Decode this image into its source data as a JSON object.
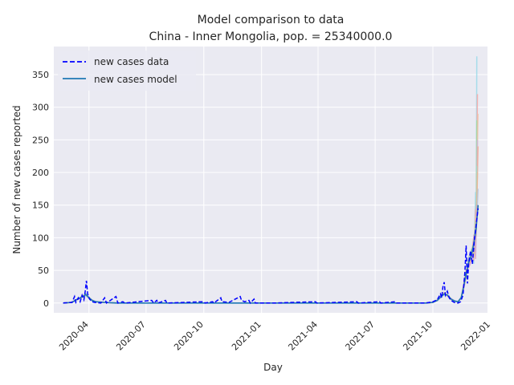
{
  "chart_data": {
    "type": "line",
    "title": "Model comparison to data",
    "subtitle": "China - Inner Mongolia, pop. = 25340000.0",
    "xlabel": "Day",
    "ylabel": "Number of new cases reported",
    "xlim": [
      "2020-02-05",
      "2021-12-27"
    ],
    "ylim": [
      -15,
      393
    ],
    "grid": true,
    "legend_position": "top-left",
    "x_ticks": [
      "2020-04",
      "2020-07",
      "2020-10",
      "2021-01",
      "2021-04",
      "2021-07",
      "2021-10",
      "2022-01"
    ],
    "y_ticks": [
      0,
      50,
      100,
      150,
      200,
      250,
      300,
      350
    ],
    "series": [
      {
        "name": "new cases data",
        "style": "dashed",
        "color": "#0000ff",
        "points": [
          [
            "2020-02-20",
            0
          ],
          [
            "2020-03-05",
            1
          ],
          [
            "2020-03-09",
            10
          ],
          [
            "2020-03-11",
            1
          ],
          [
            "2020-03-15",
            8
          ],
          [
            "2020-03-18",
            2
          ],
          [
            "2020-03-21",
            12
          ],
          [
            "2020-03-24",
            5
          ],
          [
            "2020-03-26",
            18
          ],
          [
            "2020-03-28",
            34
          ],
          [
            "2020-03-30",
            14
          ],
          [
            "2020-04-02",
            6
          ],
          [
            "2020-04-06",
            2
          ],
          [
            "2020-04-10",
            1
          ],
          [
            "2020-04-20",
            0
          ],
          [
            "2020-04-26",
            8
          ],
          [
            "2020-04-29",
            0
          ],
          [
            "2020-05-14",
            10
          ],
          [
            "2020-05-17",
            0
          ],
          [
            "2020-05-25",
            2
          ],
          [
            "2020-05-28",
            0
          ],
          [
            "2020-07-10",
            4
          ],
          [
            "2020-07-13",
            0
          ],
          [
            "2020-07-18",
            4
          ],
          [
            "2020-07-20",
            0
          ],
          [
            "2020-08-01",
            4
          ],
          [
            "2020-08-03",
            0
          ],
          [
            "2020-10-01",
            2
          ],
          [
            "2020-10-03",
            0
          ],
          [
            "2020-10-15",
            2
          ],
          [
            "2020-10-17",
            0
          ],
          [
            "2020-10-28",
            8
          ],
          [
            "2020-10-30",
            2
          ],
          [
            "2020-11-10",
            1
          ],
          [
            "2020-11-28",
            10
          ],
          [
            "2020-11-30",
            4
          ],
          [
            "2020-12-05",
            2
          ],
          [
            "2020-12-12",
            4
          ],
          [
            "2020-12-14",
            0
          ],
          [
            "2020-12-20",
            6
          ],
          [
            "2020-12-22",
            0
          ],
          [
            "2021-01-20",
            0
          ],
          [
            "2021-03-28",
            2
          ],
          [
            "2021-03-30",
            0
          ],
          [
            "2021-06-02",
            2
          ],
          [
            "2021-06-04",
            0
          ],
          [
            "2021-07-08",
            2
          ],
          [
            "2021-07-10",
            0
          ],
          [
            "2021-08-02",
            2
          ],
          [
            "2021-08-04",
            0
          ],
          [
            "2021-09-20",
            0
          ],
          [
            "2021-10-01",
            2
          ],
          [
            "2021-10-08",
            5
          ],
          [
            "2021-10-13",
            14
          ],
          [
            "2021-10-15",
            8
          ],
          [
            "2021-10-17",
            25
          ],
          [
            "2021-10-19",
            32
          ],
          [
            "2021-10-21",
            12
          ],
          [
            "2021-10-24",
            18
          ],
          [
            "2021-10-27",
            8
          ],
          [
            "2021-10-30",
            4
          ],
          [
            "2021-11-04",
            1
          ],
          [
            "2021-11-10",
            0
          ],
          [
            "2021-11-14",
            2
          ],
          [
            "2021-11-18",
            12
          ],
          [
            "2021-11-21",
            48
          ],
          [
            "2021-11-23",
            88
          ],
          [
            "2021-11-25",
            30
          ],
          [
            "2021-11-27",
            62
          ],
          [
            "2021-11-30",
            80
          ],
          [
            "2021-12-03",
            60
          ],
          [
            "2021-12-06",
            96
          ],
          [
            "2021-12-09",
            120
          ],
          [
            "2021-12-12",
            145
          ]
        ]
      },
      {
        "name": "new cases model",
        "style": "solid",
        "color": "#1f77b4",
        "points": [
          [
            "2020-02-20",
            0
          ],
          [
            "2020-03-05",
            1
          ],
          [
            "2020-03-10",
            4
          ],
          [
            "2020-03-16",
            7
          ],
          [
            "2020-03-22",
            10
          ],
          [
            "2020-03-27",
            13
          ],
          [
            "2020-04-01",
            8
          ],
          [
            "2020-04-06",
            4
          ],
          [
            "2020-04-12",
            2
          ],
          [
            "2020-04-25",
            1
          ],
          [
            "2020-05-15",
            0
          ],
          [
            "2021-09-20",
            0
          ],
          [
            "2021-10-01",
            1
          ],
          [
            "2021-10-08",
            4
          ],
          [
            "2021-10-14",
            10
          ],
          [
            "2021-10-19",
            14
          ],
          [
            "2021-10-24",
            12
          ],
          [
            "2021-10-30",
            6
          ],
          [
            "2021-11-05",
            3
          ],
          [
            "2021-11-10",
            2
          ],
          [
            "2021-11-15",
            8
          ],
          [
            "2021-11-19",
            25
          ],
          [
            "2021-11-23",
            45
          ],
          [
            "2021-11-27",
            62
          ],
          [
            "2021-12-01",
            72
          ],
          [
            "2021-12-05",
            90
          ],
          [
            "2021-12-09",
            115
          ],
          [
            "2021-12-12",
            150
          ]
        ]
      }
    ],
    "ensemble_colors": [
      "#8fd7e8",
      "#ff9f9b",
      "#f2c4a5",
      "#9edb9a",
      "#c9b3e6",
      "#f7a88a",
      "#a3d9c9",
      "#e8b98f",
      "#b0c4de",
      "#d9a0c4"
    ],
    "ensemble_peaks": [
      378,
      320,
      290,
      280,
      250,
      240,
      210,
      200,
      175,
      150
    ]
  }
}
